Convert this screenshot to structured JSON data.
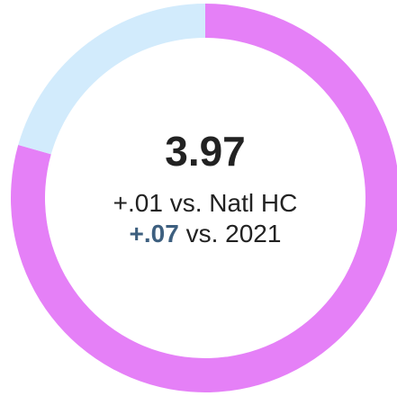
{
  "chart_data": {
    "type": "donut",
    "values": [
      3.97,
      1.03
    ],
    "colors": [
      "#e580f7",
      "#d2ebfc"
    ],
    "comparisons": [
      {
        "delta": "+.01",
        "text": "vs. Natl HC"
      },
      {
        "delta": "+.07",
        "text": "vs. 2021"
      }
    ]
  }
}
